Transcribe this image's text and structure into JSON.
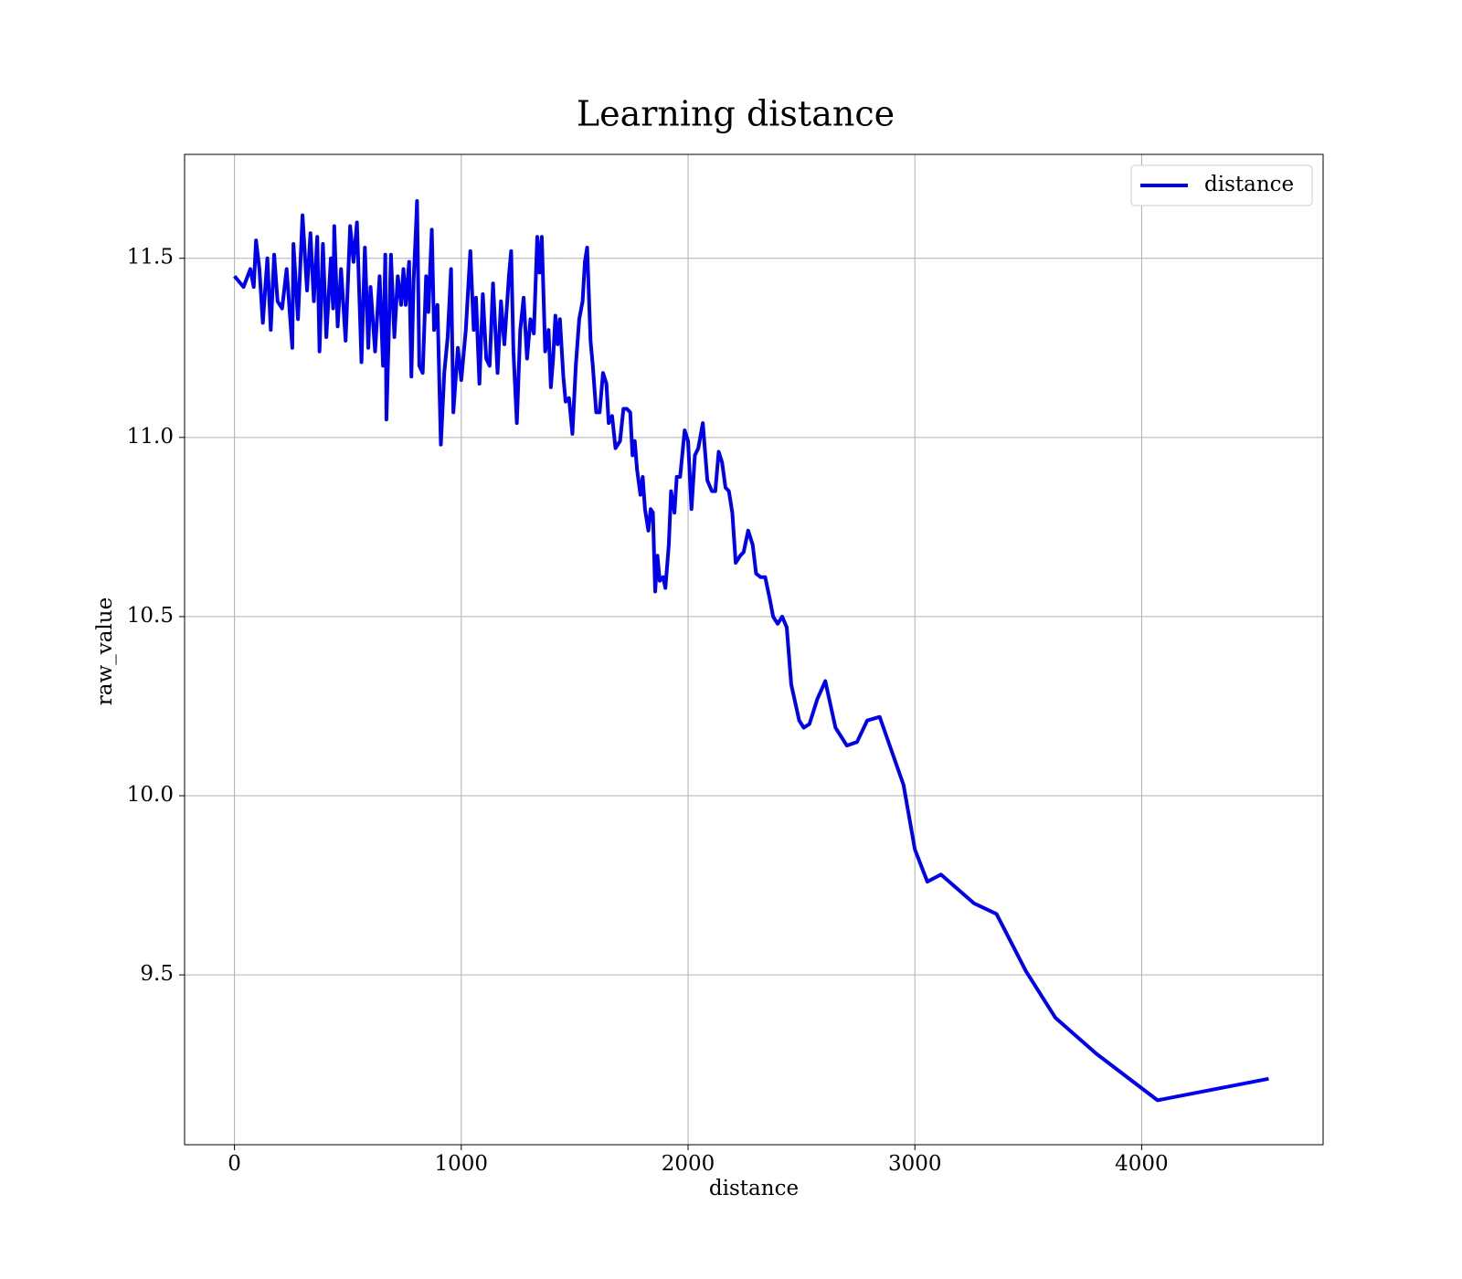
{
  "chart_data": {
    "type": "line",
    "title": "Learning distance",
    "xlabel": "distance",
    "ylabel": "raw_value",
    "x": [
      0,
      40,
      70,
      85,
      95,
      110,
      125,
      145,
      160,
      175,
      190,
      210,
      230,
      255,
      260,
      280,
      300,
      320,
      335,
      350,
      365,
      375,
      390,
      405,
      425,
      435,
      440,
      455,
      470,
      490,
      510,
      525,
      540,
      560,
      575,
      590,
      600,
      620,
      640,
      655,
      665,
      670,
      690,
      705,
      720,
      735,
      745,
      755,
      770,
      780,
      790,
      800,
      805,
      815,
      830,
      845,
      855,
      870,
      880,
      895,
      910,
      925,
      940,
      955,
      965,
      985,
      1000,
      1020,
      1040,
      1055,
      1065,
      1080,
      1095,
      1110,
      1125,
      1140,
      1160,
      1175,
      1190,
      1210,
      1220,
      1230,
      1245,
      1260,
      1275,
      1290,
      1305,
      1320,
      1335,
      1345,
      1355,
      1370,
      1385,
      1395,
      1405,
      1415,
      1425,
      1435,
      1450,
      1460,
      1475,
      1490,
      1505,
      1520,
      1535,
      1545,
      1555,
      1570,
      1580,
      1595,
      1610,
      1625,
      1640,
      1650,
      1665,
      1680,
      1700,
      1715,
      1730,
      1745,
      1755,
      1765,
      1775,
      1790,
      1800,
      1810,
      1825,
      1835,
      1845,
      1855,
      1865,
      1875,
      1890,
      1900,
      1915,
      1925,
      1940,
      1950,
      1965,
      1985,
      2000,
      2015,
      2030,
      2045,
      2065,
      2085,
      2105,
      2120,
      2135,
      2150,
      2165,
      2180,
      2195,
      2210,
      2230,
      2245,
      2265,
      2285,
      2300,
      2320,
      2340,
      2360,
      2375,
      2395,
      2415,
      2435,
      2455,
      2490,
      2510,
      2535,
      2570,
      2605,
      2650,
      2700,
      2745,
      2790,
      2845,
      2950,
      3000,
      3055,
      3115,
      3260,
      3360,
      3490,
      3620,
      3800,
      4070,
      4560
    ],
    "series": [
      {
        "name": "distance",
        "color": "#0000ee",
        "values": [
          11.45,
          11.42,
          11.47,
          11.42,
          11.55,
          11.47,
          11.32,
          11.5,
          11.3,
          11.51,
          11.38,
          11.36,
          11.47,
          11.25,
          11.54,
          11.33,
          11.62,
          11.41,
          11.57,
          11.38,
          11.56,
          11.24,
          11.54,
          11.28,
          11.5,
          11.36,
          11.59,
          11.31,
          11.47,
          11.27,
          11.59,
          11.49,
          11.6,
          11.21,
          11.53,
          11.25,
          11.42,
          11.24,
          11.45,
          11.2,
          11.51,
          11.05,
          11.51,
          11.28,
          11.45,
          11.37,
          11.47,
          11.37,
          11.49,
          11.17,
          11.44,
          11.58,
          11.66,
          11.2,
          11.18,
          11.45,
          11.35,
          11.58,
          11.3,
          11.37,
          10.98,
          11.18,
          11.28,
          11.47,
          11.07,
          11.25,
          11.16,
          11.3,
          11.52,
          11.3,
          11.39,
          11.15,
          11.4,
          11.22,
          11.2,
          11.43,
          11.18,
          11.38,
          11.26,
          11.45,
          11.52,
          11.24,
          11.04,
          11.3,
          11.39,
          11.22,
          11.33,
          11.29,
          11.56,
          11.46,
          11.56,
          11.24,
          11.3,
          11.14,
          11.22,
          11.34,
          11.26,
          11.33,
          11.17,
          11.1,
          11.11,
          11.01,
          11.2,
          11.33,
          11.38,
          11.49,
          11.53,
          11.27,
          11.2,
          11.07,
          11.07,
          11.18,
          11.15,
          11.04,
          11.06,
          10.97,
          10.99,
          11.08,
          11.08,
          11.07,
          10.95,
          10.99,
          10.91,
          10.84,
          10.89,
          10.8,
          10.74,
          10.8,
          10.79,
          10.57,
          10.67,
          10.6,
          10.61,
          10.58,
          10.7,
          10.85,
          10.79,
          10.89,
          10.89,
          11.02,
          10.99,
          10.8,
          10.95,
          10.97,
          11.04,
          10.88,
          10.85,
          10.85,
          10.96,
          10.93,
          10.86,
          10.85,
          10.79,
          10.65,
          10.67,
          10.68,
          10.74,
          10.7,
          10.62,
          10.61,
          10.61,
          10.55,
          10.5,
          10.48,
          10.5,
          10.47,
          10.31,
          10.21,
          10.19,
          10.2,
          10.27,
          10.32,
          10.19,
          10.14,
          10.15,
          10.21,
          10.22,
          10.03,
          9.85,
          9.76,
          9.78,
          9.7,
          9.67,
          9.51,
          9.38,
          9.28,
          9.15,
          9.21
        ]
      }
    ],
    "xlim": [
      -220,
      4800
    ],
    "ylim": [
      9.026,
      11.79
    ],
    "xticks": [
      0,
      1000,
      2000,
      3000,
      4000
    ],
    "yticks": [
      9.5,
      {
        "value": 10,
        "label": "10.0"
      },
      10.5,
      {
        "value": 11,
        "label": "11.0"
      },
      11.5
    ],
    "grid": true,
    "legend": "upper right"
  }
}
